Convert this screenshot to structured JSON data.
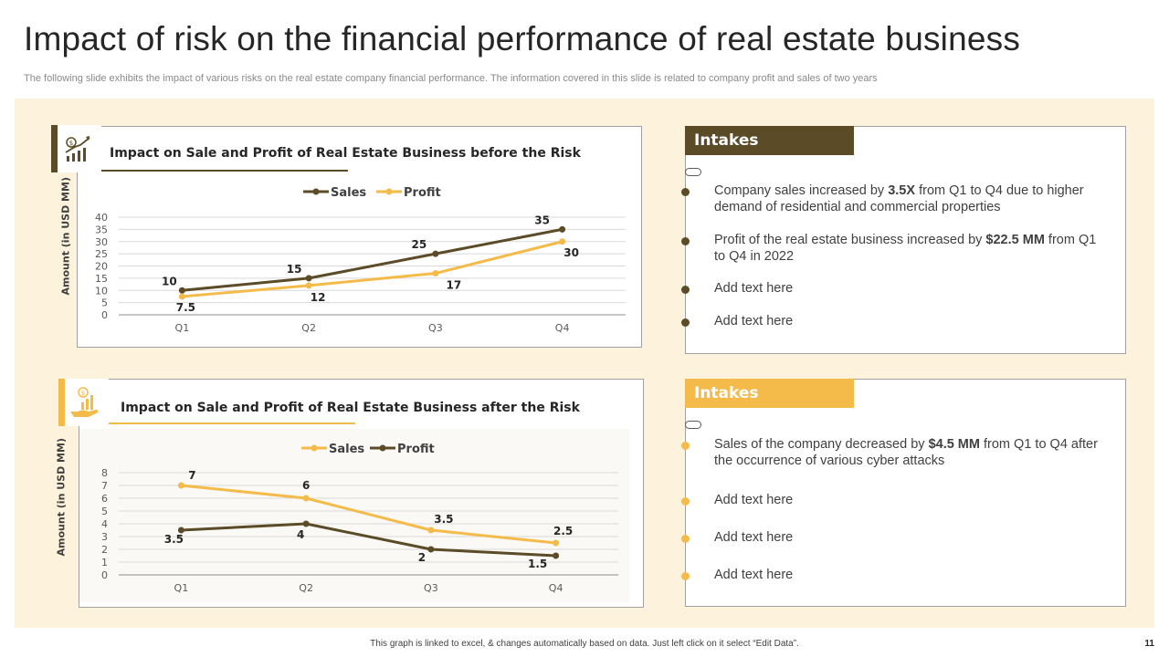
{
  "title": "Impact of risk on the financial performance of real estate business",
  "subtitle": "The following slide exhibits the impact of various risks on the real estate company financial performance. The information covered in this slide is related to company profit and sales of two years",
  "colors": {
    "dark": "#5b4b26",
    "gold": "#f5bb4a",
    "panel": "#fdf2dc"
  },
  "icons": {
    "top": "growth-chart-icon",
    "bottom": "money-hand-icon"
  },
  "chart_data": [
    {
      "type": "line",
      "title": "Impact on Sale and Profit of Real Estate Business before the Risk",
      "ylabel": "Amount (in USD MM)",
      "xlabel": "",
      "categories": [
        "Q1",
        "Q2",
        "Q3",
        "Q4"
      ],
      "ylim": [
        0,
        40
      ],
      "yticks": [
        0,
        5,
        10,
        15,
        20,
        25,
        30,
        35,
        40
      ],
      "legend": "top-center",
      "series": [
        {
          "name": "Sales",
          "color": "#5b4b26",
          "values": [
            10,
            15,
            25,
            35
          ]
        },
        {
          "name": "Profit",
          "color": "#f5bb4a",
          "values": [
            7.5,
            12,
            17,
            30
          ]
        }
      ]
    },
    {
      "type": "line",
      "title": "Impact on Sale and Profit of Real Estate Business after the Risk",
      "ylabel": "Amount (in USD MM)",
      "xlabel": "",
      "categories": [
        "Q1",
        "Q2",
        "Q3",
        "Q4"
      ],
      "ylim": [
        0,
        8
      ],
      "yticks": [
        0,
        1,
        2,
        3,
        4,
        5,
        6,
        7,
        8
      ],
      "legend": "top-center",
      "series": [
        {
          "name": "Sales",
          "color": "#f5bb4a",
          "values": [
            7,
            6,
            3.5,
            2.5
          ]
        },
        {
          "name": "Profit",
          "color": "#5b4b26",
          "values": [
            3.5,
            4,
            2,
            1.5
          ]
        }
      ]
    }
  ],
  "intakes_top": {
    "heading": "Intakes",
    "bullets": [
      {
        "pre": "Company sales increased by ",
        "bold": "3.5X",
        "post": " from Q1 to Q4 due to higher demand of residential and commercial properties"
      },
      {
        "pre": "Profit of the real estate business increased by ",
        "bold": "$22.5 MM",
        "post": " from Q1 to Q4 in 2022"
      },
      {
        "pre": "Add text here",
        "bold": "",
        "post": ""
      },
      {
        "pre": "Add text here",
        "bold": "",
        "post": ""
      }
    ]
  },
  "intakes_bottom": {
    "heading": "Intakes",
    "bullets": [
      {
        "pre": "Sales of the company decreased by ",
        "bold": "$4.5 MM",
        "post": " from Q1 to Q4 after the occurrence of various cyber attacks"
      },
      {
        "pre": "Add text here",
        "bold": "",
        "post": ""
      },
      {
        "pre": "Add text here",
        "bold": "",
        "post": ""
      },
      {
        "pre": "Add text here",
        "bold": "",
        "post": ""
      }
    ]
  },
  "footer": "This graph is linked to excel, & changes automatically based on data. Just left click on it select “Edit Data”.",
  "page_number": "11"
}
